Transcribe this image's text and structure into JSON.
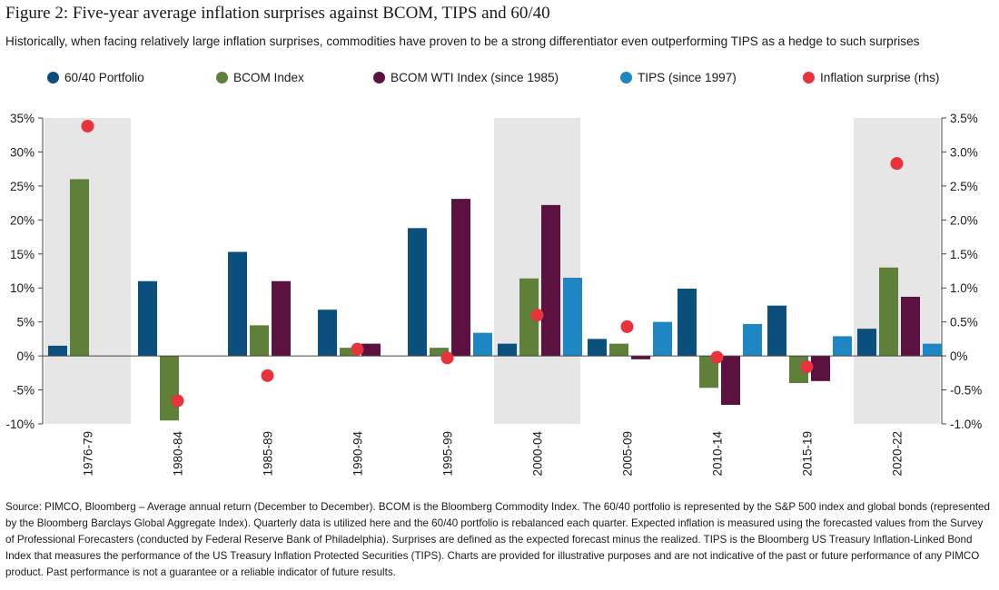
{
  "title": "Figure 2: Five-year average inflation surprises against BCOM, TIPS and 60/40",
  "subtitle": "Historically, when facing relatively large inflation surprises, commodities have proven to be a strong differentiator even outperforming TIPS as a hedge to such surprises",
  "source": "Source: PIMCO, Bloomberg – Average annual return (December to December). BCOM is the Bloomberg Commodity Index. The 60/40 portfolio is represented by the S&P 500 index and global bonds (represented by the Bloomberg Barclays Global Aggregate Index). Quarterly data is utilized here and the 60/40 portfolio is rebalanced each quarter. Expected inflation is measured using the forecasted values from the Survey of Professional Forecasters (conducted by Federal Reserve Bank of Philadelphia). Surprises are defined as the expected forecast minus the realized. TIPS is the Bloomberg US Treasury Inflation-Linked Bond Index that measures the performance of the US Treasury Inflation Protected Securities (TIPS). Charts are provided for illustrative purposes and are not indicative of the past or future performance of any PIMCO product. Past performance is not a guarantee or a reliable indicator of future results.",
  "colors": {
    "portfolio": "#0b4f7c",
    "bcom": "#5e8038",
    "wti": "#5c1240",
    "tips": "#1f86c4",
    "surprise": "#e8323c",
    "shade": "#e6e6e6"
  },
  "chart_data": {
    "type": "bar",
    "categories": [
      "1976-79",
      "1980-84",
      "1985-89",
      "1990-94",
      "1995-99",
      "2000-04",
      "2005-09",
      "2010-14",
      "2015-19",
      "2020-22"
    ],
    "shaded_categories": [
      "1976-79",
      "2000-04",
      "2020-22"
    ],
    "series": [
      {
        "name": "60/40 Portfolio",
        "color_key": "portfolio",
        "axis": "left",
        "values": [
          1.5,
          11.0,
          15.3,
          6.8,
          18.8,
          1.8,
          2.5,
          9.9,
          7.4,
          4.0
        ]
      },
      {
        "name": "BCOM Index",
        "color_key": "bcom",
        "axis": "left",
        "values": [
          26.0,
          -9.5,
          4.5,
          1.2,
          1.2,
          11.4,
          1.8,
          -4.7,
          -4.0,
          13.0
        ]
      },
      {
        "name": "BCOM WTI Index (since 1985)",
        "color_key": "wti",
        "axis": "left",
        "values": [
          null,
          null,
          11.0,
          1.8,
          23.1,
          22.2,
          -0.5,
          -7.2,
          -3.7,
          8.7
        ]
      },
      {
        "name": "TIPS (since 1997)",
        "color_key": "tips",
        "axis": "left",
        "values": [
          null,
          null,
          null,
          null,
          3.4,
          11.5,
          5.0,
          4.7,
          2.9,
          1.8
        ]
      },
      {
        "name": "Inflation surprise (rhs)",
        "color_key": "surprise",
        "axis": "right",
        "type": "scatter",
        "values": [
          3.38,
          -0.66,
          -0.29,
          0.1,
          -0.03,
          0.6,
          0.43,
          -0.02,
          -0.16,
          2.83
        ]
      }
    ],
    "y_left": {
      "min": -10,
      "max": 35,
      "step": 5,
      "tick_labels": [
        "-10%",
        "-5%",
        "0%",
        "5%",
        "10%",
        "15%",
        "20%",
        "25%",
        "30%",
        "35%"
      ]
    },
    "y_right": {
      "min": -1.0,
      "max": 3.5,
      "step": 0.5,
      "tick_labels": [
        "-1.0%",
        "-0.5%",
        "0%",
        "0.5%",
        "1.0%",
        "1.5%",
        "2.0%",
        "2.5%",
        "3.0%",
        "3.5%"
      ]
    },
    "grid": false,
    "legend_position": "top"
  }
}
